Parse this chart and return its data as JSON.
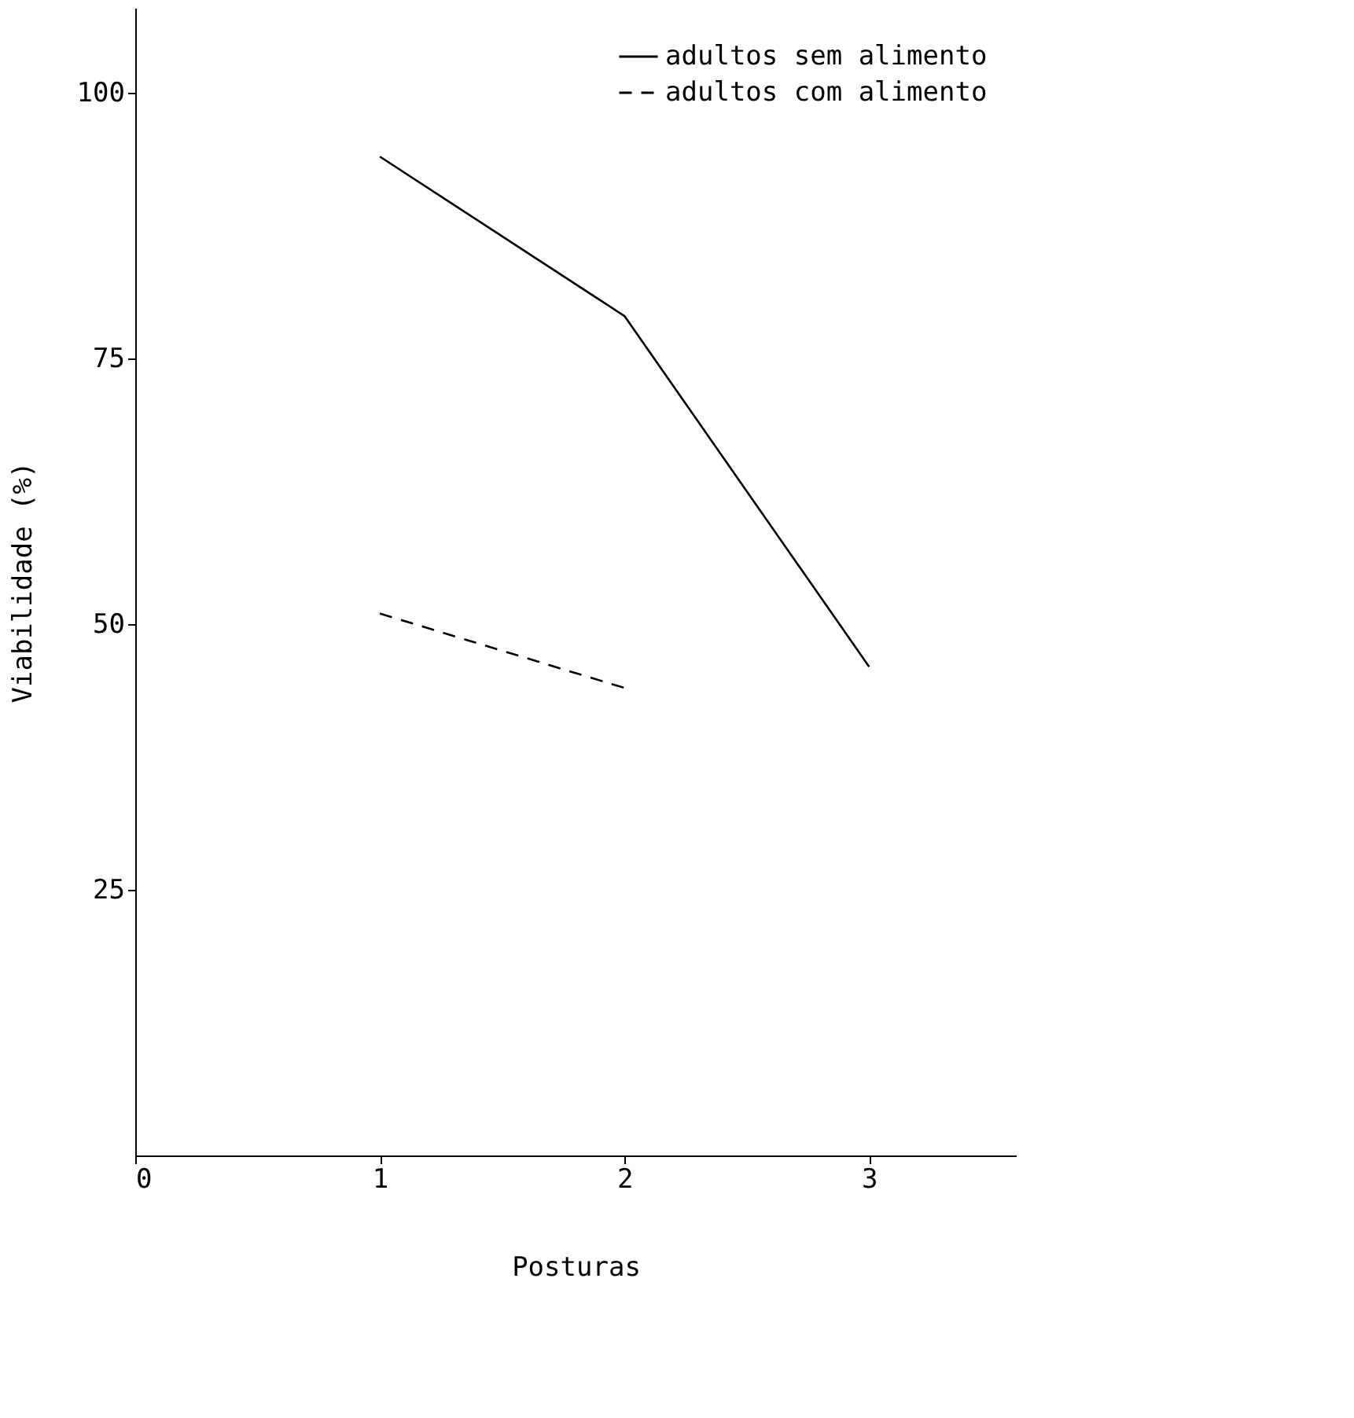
{
  "chart_data": {
    "type": "line",
    "xlabel": "Posturas",
    "ylabel": "Viabilidade  (%)",
    "x": [
      1,
      2,
      3
    ],
    "series": [
      {
        "name": "adultos sem alimento",
        "color": "#000000",
        "values": [
          94,
          79,
          46
        ],
        "line_style": "solid"
      },
      {
        "name": "adultos com alimento",
        "color": "#000000",
        "x": [
          1,
          2
        ],
        "values": [
          51,
          44
        ],
        "line_style": "dashed"
      }
    ],
    "xlim": [
      0,
      3.6
    ],
    "ylim": [
      0,
      108
    ],
    "xticks": [
      0,
      1,
      2,
      3
    ],
    "yticks": [
      25,
      50,
      75,
      100
    ],
    "grid": false,
    "legend": "top right",
    "marker": "none"
  }
}
